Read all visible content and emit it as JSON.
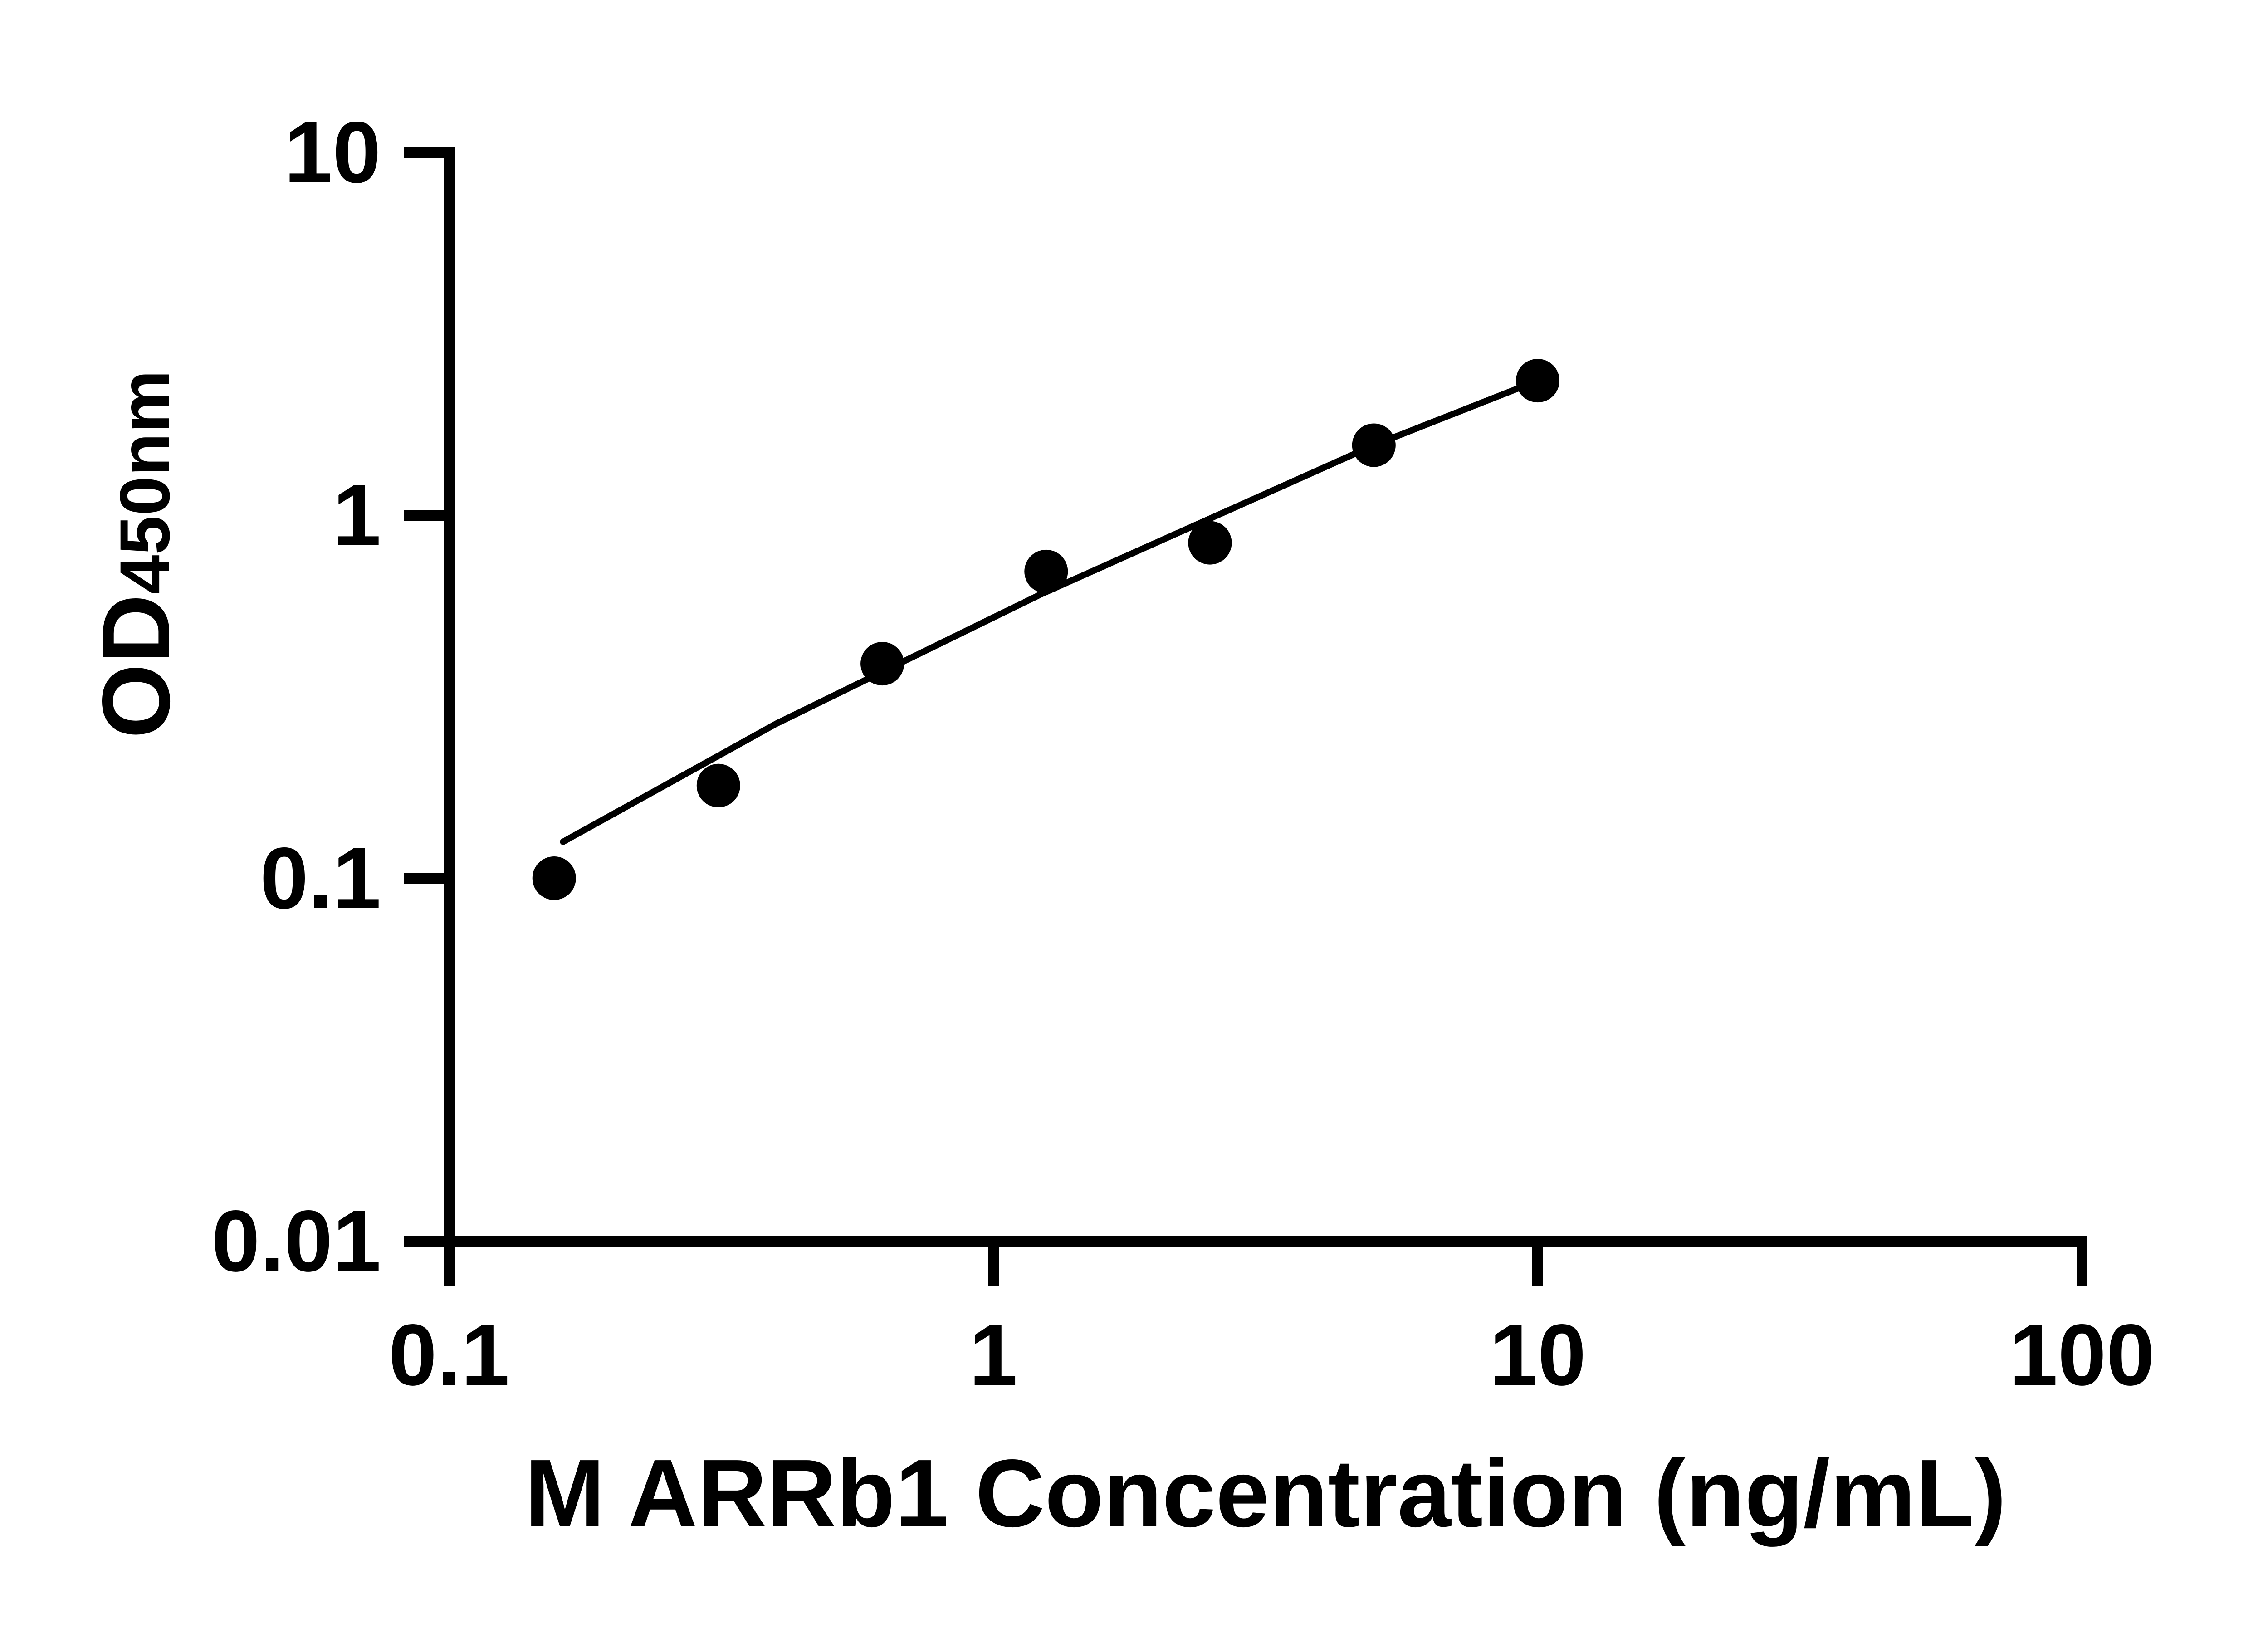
{
  "figure": {
    "background": "#ffffff",
    "ink": "#000000"
  },
  "chart_data": {
    "type": "scatter",
    "title": "",
    "xlabel": "M ARRb1 Concentration (ng/mL)",
    "ylabel": "OD450nm",
    "ylabel_main": "OD",
    "ylabel_sub": "450nm",
    "x_scale": "log",
    "y_scale": "log",
    "xlim": [
      0.1,
      100
    ],
    "ylim": [
      0.01,
      10
    ],
    "grid": false,
    "legend_position": "none",
    "marker": {
      "shape": "circle",
      "color": "#000000"
    },
    "fit_line_color": "#000000",
    "x_ticks": [
      {
        "value": 0.1,
        "label": "0.1"
      },
      {
        "value": 1,
        "label": "1"
      },
      {
        "value": 10,
        "label": "10"
      },
      {
        "value": 100,
        "label": "100"
      }
    ],
    "y_ticks": [
      {
        "value": 0.01,
        "label": "0.01"
      },
      {
        "value": 0.1,
        "label": "0.1"
      },
      {
        "value": 1,
        "label": "1"
      },
      {
        "value": 10,
        "label": "10"
      }
    ],
    "points": [
      {
        "x": 0.156,
        "y": 0.1
      },
      {
        "x": 0.3125,
        "y": 0.18
      },
      {
        "x": 0.625,
        "y": 0.39
      },
      {
        "x": 1.25,
        "y": 0.7
      },
      {
        "x": 2.5,
        "y": 0.84
      },
      {
        "x": 5,
        "y": 1.56
      },
      {
        "x": 10,
        "y": 2.35
      }
    ],
    "fit_line": [
      {
        "x": 0.162,
        "y": 0.126
      },
      {
        "x": 0.4,
        "y": 0.267
      },
      {
        "x": 1.22,
        "y": 0.605
      },
      {
        "x": 5.0,
        "y": 1.56
      },
      {
        "x": 10.0,
        "y": 2.35
      }
    ]
  }
}
